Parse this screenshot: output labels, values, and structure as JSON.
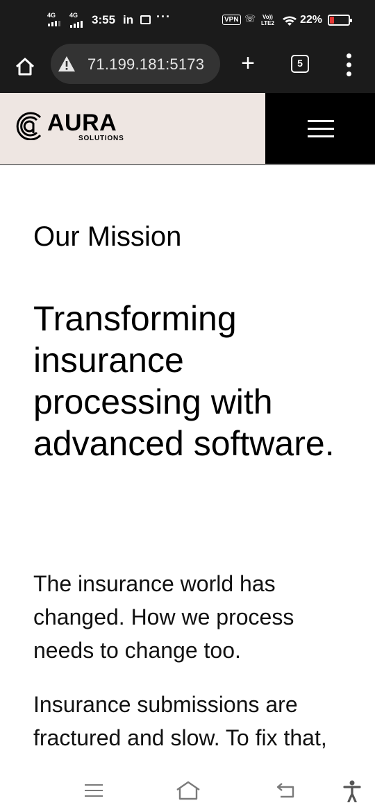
{
  "status_bar": {
    "network_1": "4G",
    "network_2": "4G",
    "time": "3:55",
    "notification_app": "in",
    "vpn": "VPN",
    "volte_top": "Vo))",
    "volte_bottom": "LTE2",
    "battery_percent": "22%",
    "battery_level": 0.22,
    "battery_color": "#e53935"
  },
  "browser": {
    "url": "71.199.181:5173",
    "security_icon": "warning-triangle-icon",
    "tab_count": "5",
    "new_tab_label": "+"
  },
  "site_header": {
    "brand_name": "AURA",
    "brand_tagline": "SOLUTIONS",
    "brand_background": "#eee6e2",
    "menu_icon": "hamburger-icon"
  },
  "main": {
    "eyebrow": "Our Mission",
    "headline": "Transforming insurance processing with advanced software.",
    "paragraph_1": "The insurance world has changed. How we process needs to change too.",
    "paragraph_2": "Insurance submissions are fractured and slow. To fix that, we put technology"
  },
  "system_nav": {
    "recents_icon": "recents-icon",
    "home_icon": "home-icon",
    "back_icon": "back-icon",
    "accessibility_icon": "accessibility-icon"
  }
}
